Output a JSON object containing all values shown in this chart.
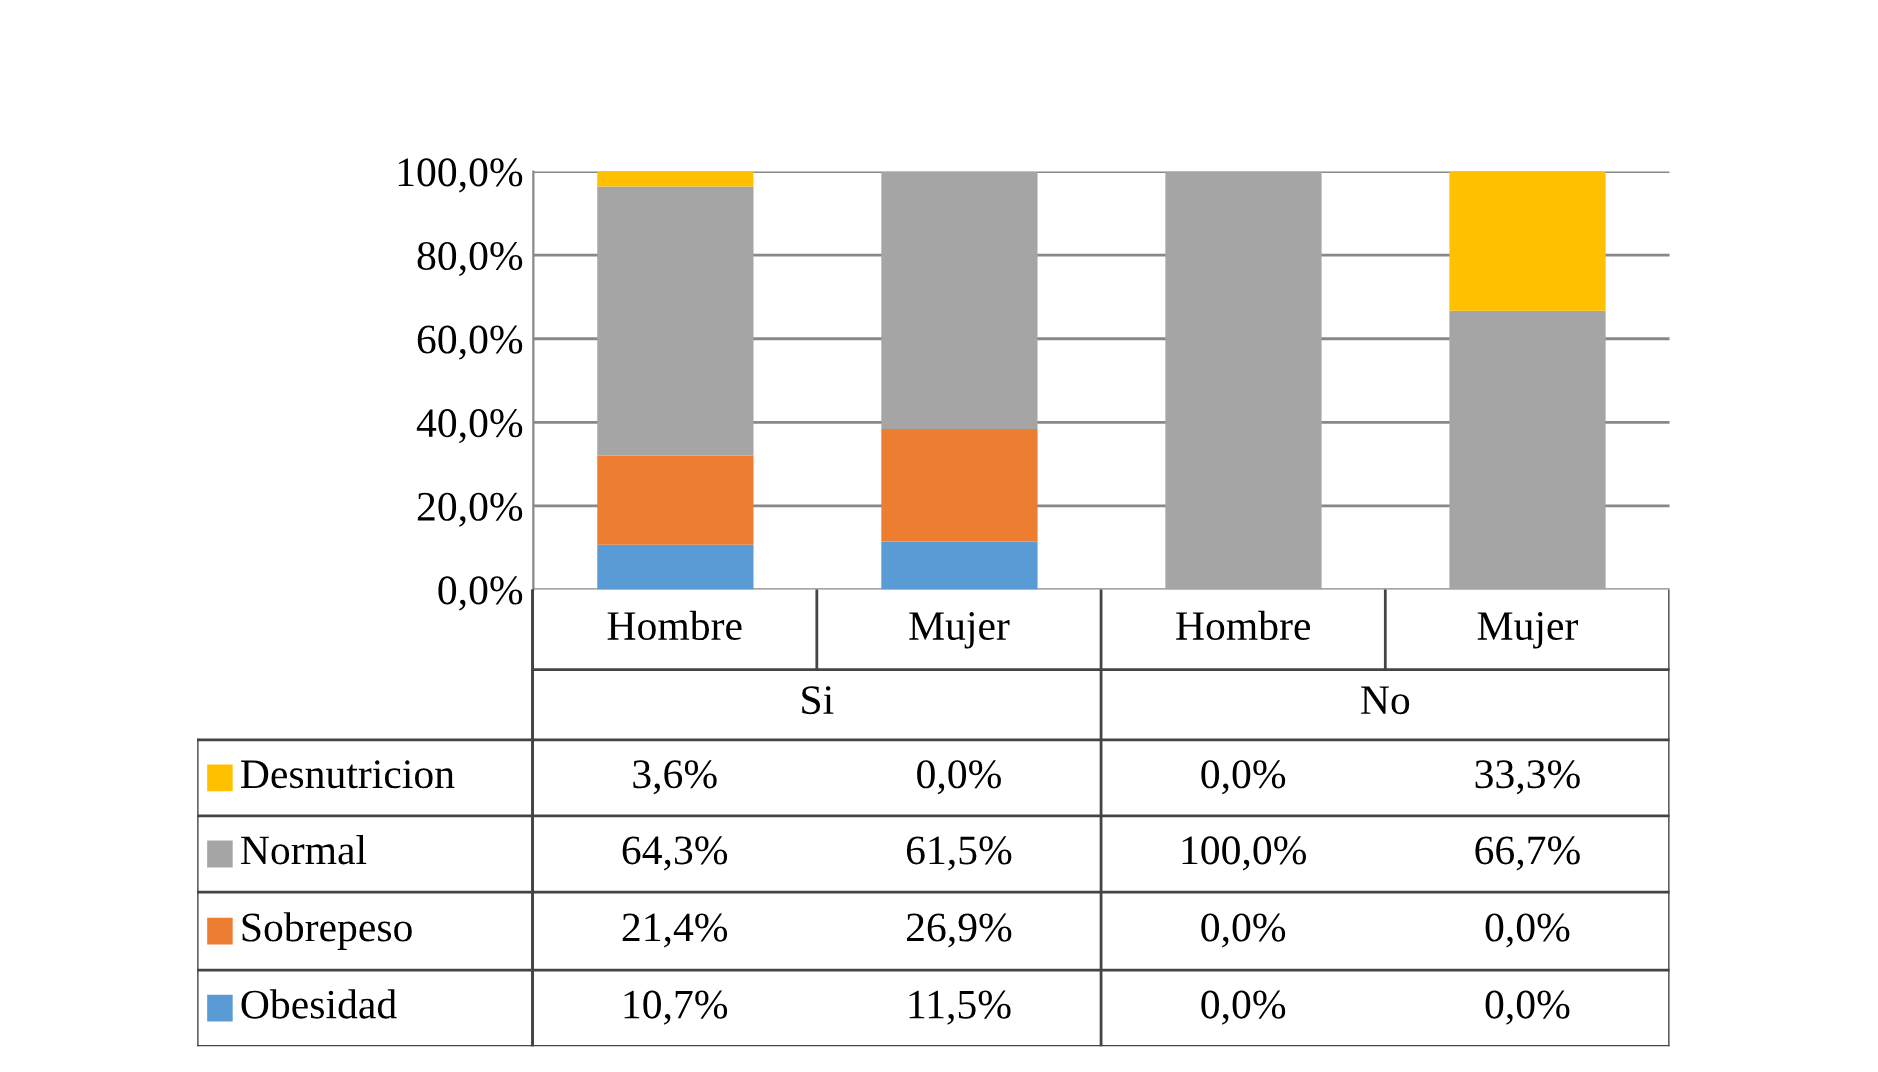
{
  "chart_data": {
    "type": "bar",
    "stacked": true,
    "categories": [
      "Hombre",
      "Mujer",
      "Hombre",
      "Mujer"
    ],
    "annotations": [
      "Si",
      "No"
    ],
    "series": [
      {
        "name": "Obesidad",
        "color": "#5b9bd5",
        "values": [
          10.7,
          11.5,
          0.0,
          0.0
        ],
        "value_labels": [
          "10,7%",
          "11,5%",
          "0,0%",
          "0,0%"
        ]
      },
      {
        "name": "Sobrepeso",
        "color": "#ed7d31",
        "values": [
          21.4,
          26.9,
          0.0,
          0.0
        ],
        "value_labels": [
          "21,4%",
          "26,9%",
          "0,0%",
          "0,0%"
        ]
      },
      {
        "name": "Normal",
        "color": "#a5a5a5",
        "values": [
          64.3,
          61.5,
          100.0,
          66.7
        ],
        "value_labels": [
          "64,3%",
          "61,5%",
          "100,0%",
          "66,7%"
        ]
      },
      {
        "name": "Desnutricion",
        "color": "#ffc000",
        "values": [
          3.6,
          0.0,
          0.0,
          33.3
        ],
        "value_labels": [
          "3,6%",
          "0,0%",
          "0,0%",
          "33,3%"
        ]
      }
    ],
    "ylim": [
      0,
      100
    ],
    "yticks": [
      {
        "value": 0,
        "label": "0,0%"
      },
      {
        "value": 20,
        "label": "20,0%"
      },
      {
        "value": 40,
        "label": "40,0%"
      },
      {
        "value": 60,
        "label": "60,0%"
      },
      {
        "value": 80,
        "label": "80,0%"
      },
      {
        "value": 100,
        "label": "100,0%"
      }
    ],
    "grid": "y",
    "legend": "bottom"
  }
}
